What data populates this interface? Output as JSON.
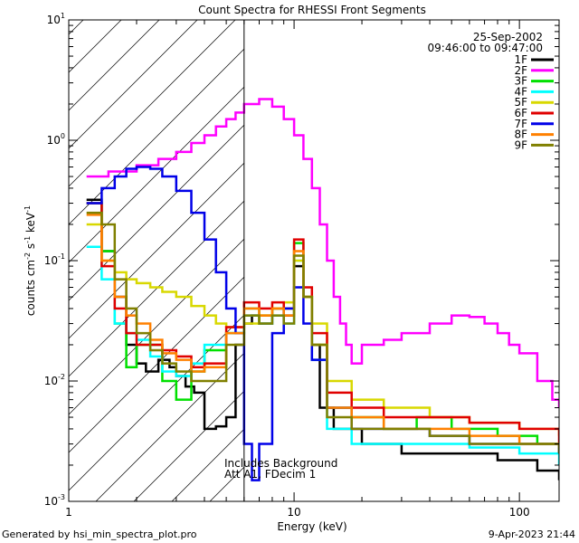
{
  "chart_data": {
    "type": "line",
    "title": "Count Spectra for RHESSI Front Segments",
    "xlabel": "Energy (keV)",
    "ylabel": "counts cm",
    "ylabel_sup1": "-2",
    "ylabel_mid": " s",
    "ylabel_sup2": "-1",
    "ylabel_tail": " keV",
    "ylabel_sup3": "-1",
    "x_scale": "log",
    "y_scale": "log",
    "xlim": [
      1.0,
      150.0
    ],
    "ylim": [
      0.001,
      10.0
    ],
    "x_ticks": [
      {
        "value": 1,
        "label": "1"
      },
      {
        "value": 10,
        "label": "10"
      },
      {
        "value": 100,
        "label": "100"
      }
    ],
    "y_ticks": [
      {
        "value": 0.001,
        "base": "10",
        "exp": "-3"
      },
      {
        "value": 0.01,
        "base": "10",
        "exp": "-2"
      },
      {
        "value": 0.1,
        "base": "10",
        "exp": "-1"
      },
      {
        "value": 1,
        "base": "10",
        "exp": "0"
      },
      {
        "value": 10,
        "base": "10",
        "exp": "1"
      }
    ],
    "hatched_region": [
      1.0,
      6.0
    ],
    "date": "25-Sep-2002",
    "time_range": "09:46:00 to 09:47:00",
    "annotation_line1": "Includes Background",
    "annotation_line2": "Att A1, FDecim 1",
    "series": [
      {
        "name": "1F",
        "color": "#000000",
        "points": [
          [
            1.2,
            0.32
          ],
          [
            1.4,
            0.12
          ],
          [
            1.6,
            0.05
          ],
          [
            1.8,
            0.02
          ],
          [
            2.0,
            0.014
          ],
          [
            2.2,
            0.012
          ],
          [
            2.5,
            0.015
          ],
          [
            2.8,
            0.013
          ],
          [
            3.0,
            0.011
          ],
          [
            3.3,
            0.009
          ],
          [
            3.6,
            0.008
          ],
          [
            4.0,
            0.004
          ],
          [
            4.5,
            0.0042
          ],
          [
            5.0,
            0.005
          ],
          [
            5.5,
            0.02
          ],
          [
            6.0,
            0.03
          ],
          [
            6.5,
            0.035
          ],
          [
            7.0,
            0.03
          ],
          [
            8.0,
            0.04
          ],
          [
            9.0,
            0.035
          ],
          [
            10.0,
            0.09
          ],
          [
            11.0,
            0.05
          ],
          [
            12.0,
            0.02
          ],
          [
            13.0,
            0.006
          ],
          [
            15.0,
            0.004
          ],
          [
            20.0,
            0.003
          ],
          [
            30.0,
            0.0025
          ],
          [
            50.0,
            0.0025
          ],
          [
            80.0,
            0.0022
          ],
          [
            120.0,
            0.0018
          ],
          [
            150.0,
            0.0015
          ]
        ]
      },
      {
        "name": "2F",
        "color": "#ff00ff",
        "points": [
          [
            1.2,
            0.5
          ],
          [
            1.5,
            0.55
          ],
          [
            2.0,
            0.62
          ],
          [
            2.5,
            0.7
          ],
          [
            3.0,
            0.8
          ],
          [
            3.5,
            0.95
          ],
          [
            4.0,
            1.1
          ],
          [
            4.5,
            1.3
          ],
          [
            5.0,
            1.5
          ],
          [
            5.5,
            1.7
          ],
          [
            6.0,
            2.0
          ],
          [
            7.0,
            2.2
          ],
          [
            8.0,
            1.9
          ],
          [
            9.0,
            1.5
          ],
          [
            10.0,
            1.1
          ],
          [
            11.0,
            0.7
          ],
          [
            12.0,
            0.4
          ],
          [
            13.0,
            0.2
          ],
          [
            14.0,
            0.1
          ],
          [
            15.0,
            0.05
          ],
          [
            16.0,
            0.03
          ],
          [
            17.0,
            0.02
          ],
          [
            18.0,
            0.014
          ],
          [
            20.0,
            0.02
          ],
          [
            25.0,
            0.022
          ],
          [
            30.0,
            0.025
          ],
          [
            40.0,
            0.03
          ],
          [
            50.0,
            0.035
          ],
          [
            60.0,
            0.034
          ],
          [
            70.0,
            0.03
          ],
          [
            80.0,
            0.025
          ],
          [
            90.0,
            0.02
          ],
          [
            100.0,
            0.017
          ],
          [
            120.0,
            0.01
          ],
          [
            140.0,
            0.007
          ],
          [
            150.0,
            0.006
          ]
        ]
      },
      {
        "name": "3F",
        "color": "#00e000",
        "points": [
          [
            1.2,
            0.3
          ],
          [
            1.4,
            0.12
          ],
          [
            1.6,
            0.03
          ],
          [
            1.8,
            0.013
          ],
          [
            2.0,
            0.02
          ],
          [
            2.3,
            0.02
          ],
          [
            2.6,
            0.01
          ],
          [
            3.0,
            0.007
          ],
          [
            3.5,
            0.012
          ],
          [
            4.0,
            0.018
          ],
          [
            5.0,
            0.025
          ],
          [
            6.0,
            0.04
          ],
          [
            7.0,
            0.035
          ],
          [
            8.0,
            0.04
          ],
          [
            9.0,
            0.04
          ],
          [
            10.0,
            0.14
          ],
          [
            11.0,
            0.05
          ],
          [
            12.0,
            0.02
          ],
          [
            14.0,
            0.006
          ],
          [
            18.0,
            0.005
          ],
          [
            25.0,
            0.004
          ],
          [
            35.0,
            0.005
          ],
          [
            50.0,
            0.004
          ],
          [
            80.0,
            0.0035
          ],
          [
            120.0,
            0.003
          ],
          [
            150.0,
            0.0025
          ]
        ]
      },
      {
        "name": "4F",
        "color": "#00ffff",
        "points": [
          [
            1.2,
            0.13
          ],
          [
            1.4,
            0.07
          ],
          [
            1.6,
            0.03
          ],
          [
            1.8,
            0.025
          ],
          [
            2.0,
            0.022
          ],
          [
            2.3,
            0.016
          ],
          [
            2.6,
            0.012
          ],
          [
            3.0,
            0.011
          ],
          [
            3.5,
            0.014
          ],
          [
            4.0,
            0.02
          ],
          [
            5.0,
            0.025
          ],
          [
            6.0,
            0.035
          ],
          [
            7.0,
            0.03
          ],
          [
            8.0,
            0.035
          ],
          [
            9.0,
            0.03
          ],
          [
            10.0,
            0.1
          ],
          [
            11.0,
            0.05
          ],
          [
            12.0,
            0.015
          ],
          [
            14.0,
            0.004
          ],
          [
            18.0,
            0.003
          ],
          [
            25.0,
            0.003
          ],
          [
            40.0,
            0.003
          ],
          [
            60.0,
            0.0028
          ],
          [
            100.0,
            0.0025
          ],
          [
            150.0,
            0.002
          ]
        ]
      },
      {
        "name": "5F",
        "color": "#d8d800",
        "points": [
          [
            1.2,
            0.2
          ],
          [
            1.4,
            0.1
          ],
          [
            1.6,
            0.08
          ],
          [
            1.8,
            0.07
          ],
          [
            2.0,
            0.065
          ],
          [
            2.3,
            0.06
          ],
          [
            2.6,
            0.055
          ],
          [
            3.0,
            0.05
          ],
          [
            3.5,
            0.042
          ],
          [
            4.0,
            0.035
          ],
          [
            4.5,
            0.03
          ],
          [
            5.0,
            0.028
          ],
          [
            6.0,
            0.03
          ],
          [
            7.0,
            0.035
          ],
          [
            8.0,
            0.04
          ],
          [
            9.0,
            0.045
          ],
          [
            10.0,
            0.1
          ],
          [
            11.0,
            0.05
          ],
          [
            12.0,
            0.03
          ],
          [
            14.0,
            0.01
          ],
          [
            18.0,
            0.007
          ],
          [
            25.0,
            0.006
          ],
          [
            40.0,
            0.005
          ],
          [
            60.0,
            0.0045
          ],
          [
            100.0,
            0.004
          ],
          [
            150.0,
            0.0035
          ]
        ]
      },
      {
        "name": "6F",
        "color": "#e00000",
        "points": [
          [
            1.2,
            0.3
          ],
          [
            1.4,
            0.09
          ],
          [
            1.6,
            0.04
          ],
          [
            1.8,
            0.025
          ],
          [
            2.0,
            0.02
          ],
          [
            2.3,
            0.02
          ],
          [
            2.6,
            0.018
          ],
          [
            3.0,
            0.016
          ],
          [
            3.5,
            0.013
          ],
          [
            4.0,
            0.014
          ],
          [
            5.0,
            0.028
          ],
          [
            6.0,
            0.045
          ],
          [
            7.0,
            0.04
          ],
          [
            8.0,
            0.045
          ],
          [
            9.0,
            0.04
          ],
          [
            10.0,
            0.15
          ],
          [
            11.0,
            0.06
          ],
          [
            12.0,
            0.025
          ],
          [
            14.0,
            0.008
          ],
          [
            18.0,
            0.006
          ],
          [
            25.0,
            0.005
          ],
          [
            40.0,
            0.005
          ],
          [
            60.0,
            0.0045
          ],
          [
            100.0,
            0.004
          ],
          [
            150.0,
            0.003
          ]
        ]
      },
      {
        "name": "7F",
        "color": "#0000e8",
        "points": [
          [
            1.2,
            0.3
          ],
          [
            1.4,
            0.4
          ],
          [
            1.6,
            0.5
          ],
          [
            1.8,
            0.58
          ],
          [
            2.0,
            0.6
          ],
          [
            2.3,
            0.58
          ],
          [
            2.6,
            0.5
          ],
          [
            3.0,
            0.38
          ],
          [
            3.5,
            0.25
          ],
          [
            4.0,
            0.15
          ],
          [
            4.5,
            0.08
          ],
          [
            5.0,
            0.04
          ],
          [
            5.5,
            0.025
          ],
          [
            6.0,
            0.003
          ],
          [
            6.5,
            0.0015
          ],
          [
            7.0,
            0.003
          ],
          [
            8.0,
            0.025
          ],
          [
            9.0,
            0.04
          ],
          [
            10.0,
            0.06
          ],
          [
            11.0,
            0.03
          ],
          [
            12.0,
            0.015
          ],
          [
            14.0,
            0.006
          ],
          [
            18.0,
            0.004
          ],
          [
            25.0,
            0.004
          ],
          [
            40.0,
            0.0035
          ],
          [
            60.0,
            0.003
          ],
          [
            100.0,
            0.003
          ],
          [
            150.0,
            0.0025
          ]
        ]
      },
      {
        "name": "8F",
        "color": "#ff8000",
        "points": [
          [
            1.2,
            0.24
          ],
          [
            1.4,
            0.1
          ],
          [
            1.6,
            0.05
          ],
          [
            1.8,
            0.035
          ],
          [
            2.0,
            0.03
          ],
          [
            2.3,
            0.022
          ],
          [
            2.6,
            0.017
          ],
          [
            3.0,
            0.015
          ],
          [
            3.5,
            0.012
          ],
          [
            4.0,
            0.013
          ],
          [
            5.0,
            0.025
          ],
          [
            6.0,
            0.04
          ],
          [
            7.0,
            0.035
          ],
          [
            8.0,
            0.04
          ],
          [
            9.0,
            0.035
          ],
          [
            10.0,
            0.12
          ],
          [
            11.0,
            0.05
          ],
          [
            12.0,
            0.02
          ],
          [
            14.0,
            0.006
          ],
          [
            18.0,
            0.005
          ],
          [
            25.0,
            0.004
          ],
          [
            40.0,
            0.004
          ],
          [
            60.0,
            0.0035
          ],
          [
            100.0,
            0.003
          ],
          [
            150.0,
            0.0028
          ]
        ]
      },
      {
        "name": "9F",
        "color": "#808000",
        "points": [
          [
            1.2,
            0.25
          ],
          [
            1.4,
            0.2
          ],
          [
            1.6,
            0.07
          ],
          [
            1.8,
            0.04
          ],
          [
            2.0,
            0.025
          ],
          [
            2.3,
            0.018
          ],
          [
            2.6,
            0.014
          ],
          [
            3.0,
            0.012
          ],
          [
            3.5,
            0.01
          ],
          [
            4.0,
            0.01
          ],
          [
            5.0,
            0.02
          ],
          [
            6.0,
            0.035
          ],
          [
            7.0,
            0.03
          ],
          [
            8.0,
            0.035
          ],
          [
            9.0,
            0.03
          ],
          [
            10.0,
            0.11
          ],
          [
            11.0,
            0.05
          ],
          [
            12.0,
            0.02
          ],
          [
            14.0,
            0.005
          ],
          [
            18.0,
            0.004
          ],
          [
            25.0,
            0.004
          ],
          [
            40.0,
            0.0035
          ],
          [
            60.0,
            0.003
          ],
          [
            100.0,
            0.003
          ],
          [
            150.0,
            0.0025
          ]
        ]
      }
    ]
  },
  "footer": {
    "generated_by": "Generated by hsi_min_spectra_plot.pro",
    "timestamp": "9-Apr-2023 21:44"
  }
}
